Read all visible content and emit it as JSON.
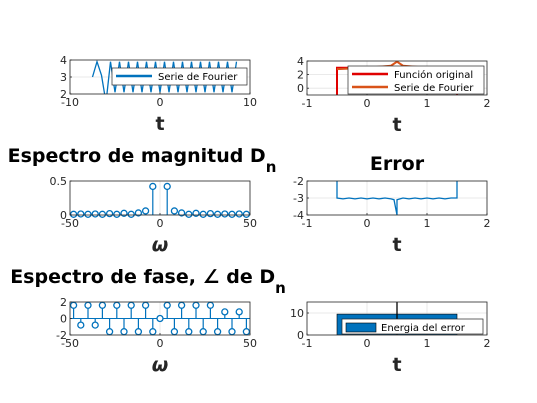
{
  "chart_data": [
    {
      "id": "p1",
      "type": "line",
      "title": "",
      "xlabel": "t",
      "ylabel": "",
      "xlim": [
        -10,
        10
      ],
      "ylim": [
        2,
        4
      ],
      "xticks": [
        -10,
        0,
        10
      ],
      "yticks": [
        2,
        3,
        4
      ],
      "legend": {
        "placement": "top-right",
        "entries": [
          "Serie de Fourier"
        ]
      },
      "series": [
        {
          "name": "Serie de Fourier",
          "color": "#0072BD",
          "x": [
            -7.5,
            -7.0,
            -6.5,
            -6.0,
            -5.5,
            -5.0,
            -4.5,
            -4.0,
            -3.5,
            -3.0,
            -2.5,
            -2.0,
            -1.5,
            -1.0,
            -0.5,
            0.0,
            0.5,
            1.0,
            1.5,
            2.0,
            2.5,
            3.0,
            3.5,
            4.0,
            4.5,
            5.0,
            5.5,
            6.0,
            6.5,
            7.0,
            7.5,
            8.0,
            8.5
          ],
          "y": [
            3.0,
            3.9,
            3.1,
            1.5,
            3.9,
            2.1,
            3.9,
            2.1,
            3.9,
            2.1,
            3.9,
            2.1,
            3.9,
            2.1,
            3.9,
            2.1,
            3.9,
            2.1,
            3.9,
            2.1,
            3.9,
            2.1,
            3.9,
            2.1,
            3.9,
            2.1,
            3.9,
            2.1,
            3.9,
            2.1,
            3.9,
            2.1,
            3.9
          ]
        }
      ]
    },
    {
      "id": "p2",
      "type": "line",
      "title": "",
      "xlabel": "t",
      "ylabel": "",
      "xlim": [
        -1,
        2
      ],
      "ylim": [
        -1,
        4
      ],
      "xticks": [
        -1,
        0,
        1,
        2
      ],
      "yticks": [
        0,
        2,
        4
      ],
      "legend": {
        "placement": "top-right",
        "entries": [
          "Función original",
          "Serie de Fourier"
        ]
      },
      "series": [
        {
          "name": "Función original",
          "color": "#E00000",
          "x": [
            -0.5,
            -0.5,
            0.5,
            0.5,
            1.5,
            1.5
          ],
          "y": [
            -1,
            3,
            3,
            3,
            3,
            -1
          ]
        },
        {
          "name": "Serie de Fourier",
          "color": "#D95319",
          "x": [
            -0.5,
            0.0,
            0.4,
            0.5,
            0.6,
            1.0,
            1.5
          ],
          "y": [
            2.8,
            3.0,
            3.3,
            3.9,
            3.3,
            3.0,
            2.8
          ]
        }
      ]
    },
    {
      "id": "p3",
      "type": "stem",
      "title": "Espectro de magnitud D",
      "title_sub": "n",
      "xlabel": "ω",
      "ylabel": "",
      "xlim": [
        -50,
        50
      ],
      "ylim": [
        0,
        0.5
      ],
      "xticks": [
        -50,
        0,
        50
      ],
      "yticks": [
        0,
        0.5
      ],
      "series": [
        {
          "name": "",
          "color": "#0072BD",
          "x": [
            -48,
            -44,
            -40,
            -36,
            -32,
            -28,
            -24,
            -20,
            -16,
            -12,
            -8,
            -4,
            4,
            8,
            12,
            16,
            20,
            24,
            28,
            32,
            36,
            40,
            44,
            48
          ],
          "y": [
            0.01,
            0.015,
            0.01,
            0.015,
            0.01,
            0.02,
            0.01,
            0.025,
            0.01,
            0.03,
            0.06,
            0.42,
            0.42,
            0.06,
            0.03,
            0.01,
            0.025,
            0.01,
            0.02,
            0.01,
            0.015,
            0.01,
            0.015,
            0.01
          ]
        }
      ]
    },
    {
      "id": "p4",
      "type": "line",
      "title": "Error",
      "xlabel": "t",
      "ylabel": "",
      "xlim": [
        -1,
        2
      ],
      "ylim": [
        -4,
        -2
      ],
      "xticks": [
        -1,
        0,
        1,
        2
      ],
      "yticks": [
        -2,
        -3,
        -4
      ],
      "series": [
        {
          "name": "",
          "color": "#0072BD",
          "x": [
            -0.5,
            -0.5,
            -0.4,
            -0.3,
            -0.2,
            -0.1,
            0.0,
            0.1,
            0.2,
            0.3,
            0.4,
            0.45,
            0.5,
            0.5,
            0.55,
            0.6,
            0.7,
            0.8,
            0.9,
            1.0,
            1.1,
            1.2,
            1.3,
            1.4,
            1.5,
            1.5
          ],
          "y": [
            -2.0,
            -3.0,
            -3.05,
            -3.0,
            -3.05,
            -3.0,
            -3.05,
            -3.0,
            -3.05,
            -3.0,
            -3.05,
            -3.1,
            -4.0,
            -3.1,
            -3.05,
            -3.0,
            -3.05,
            -3.0,
            -3.05,
            -3.0,
            -3.05,
            -3.0,
            -3.05,
            -3.0,
            -3.0,
            -2.0
          ]
        }
      ]
    },
    {
      "id": "p5",
      "type": "stem",
      "title": "Espectro de fase, ∠ de D",
      "title_sub": "n",
      "xlabel": "ω",
      "ylabel": "",
      "xlim": [
        -50,
        50
      ],
      "ylim": [
        -2,
        2
      ],
      "xticks": [
        -50,
        0,
        50
      ],
      "yticks": [
        -2,
        0,
        2
      ],
      "series": [
        {
          "name": "",
          "color": "#0072BD",
          "x": [
            -48,
            -44,
            -40,
            -36,
            -32,
            -28,
            -24,
            -20,
            -16,
            -12,
            -8,
            -4,
            0,
            4,
            8,
            12,
            16,
            20,
            24,
            28,
            32,
            36,
            40,
            44,
            48
          ],
          "y": [
            1.6,
            -0.8,
            1.6,
            -0.8,
            1.6,
            -1.6,
            1.6,
            -1.6,
            1.6,
            -1.6,
            1.6,
            -1.6,
            0,
            1.6,
            -1.6,
            1.6,
            -1.6,
            1.6,
            -1.6,
            1.6,
            -1.6,
            0.8,
            -1.6,
            0.8,
            -1.6
          ]
        }
      ]
    },
    {
      "id": "p6",
      "type": "bar",
      "title": "",
      "xlabel": "t",
      "ylabel": "",
      "xlim": [
        -1,
        2
      ],
      "ylim": [
        0,
        15
      ],
      "xticks": [
        -1,
        0,
        1,
        2
      ],
      "yticks": [
        0,
        10
      ],
      "legend": {
        "placement": "top-right",
        "entries": [
          "Energia del error"
        ]
      },
      "series": [
        {
          "name": "Energia del error",
          "color": "#0072BD",
          "x": [
            -0.5,
            1.5
          ],
          "y": [
            9.5,
            9.5
          ],
          "spike": {
            "x": 0.5,
            "y": 16
          }
        }
      ]
    }
  ]
}
